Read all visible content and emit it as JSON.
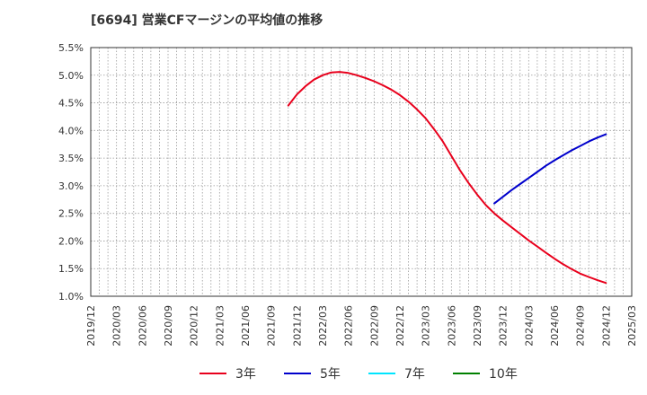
{
  "chart_data": {
    "type": "line",
    "title": "[6694]  営業CFマージンの平均値の推移",
    "xlabel": "",
    "ylabel": "",
    "ylim": [
      1.0,
      5.5
    ],
    "y_ticks": [
      1.0,
      1.5,
      2.0,
      2.5,
      3.0,
      3.5,
      4.0,
      4.5,
      5.0,
      5.5
    ],
    "y_tick_labels": [
      "1.0%",
      "1.5%",
      "2.0%",
      "2.5%",
      "3.0%",
      "3.5%",
      "4.0%",
      "4.5%",
      "5.0%",
      "5.5%"
    ],
    "x_tick_labels": [
      "2019/12",
      "2020/03",
      "2020/06",
      "2020/09",
      "2020/12",
      "2021/03",
      "2021/06",
      "2021/09",
      "2021/12",
      "2022/03",
      "2022/06",
      "2022/09",
      "2022/12",
      "2023/03",
      "2023/06",
      "2023/09",
      "2023/12",
      "2024/03",
      "2024/06",
      "2024/09",
      "2024/12",
      "2025/03"
    ],
    "grid": true,
    "legend_position": "bottom",
    "series": [
      {
        "name": "3年",
        "color": "#e8001c",
        "x": [
          "2021/11",
          "2021/12",
          "2022/01",
          "2022/02",
          "2022/03",
          "2022/04",
          "2022/05",
          "2022/06",
          "2022/07",
          "2022/08",
          "2022/09",
          "2022/10",
          "2022/11",
          "2022/12",
          "2023/01",
          "2023/02",
          "2023/03",
          "2023/04",
          "2023/05",
          "2023/06",
          "2023/07",
          "2023/08",
          "2023/09",
          "2023/10",
          "2023/11",
          "2023/12",
          "2024/01",
          "2024/02",
          "2024/03",
          "2024/04",
          "2024/05",
          "2024/06",
          "2024/07",
          "2024/08",
          "2024/09",
          "2024/10",
          "2024/11",
          "2024/12"
        ],
        "values": [
          4.45,
          4.65,
          4.8,
          4.92,
          5.0,
          5.05,
          5.06,
          5.04,
          5.0,
          4.95,
          4.89,
          4.82,
          4.74,
          4.64,
          4.52,
          4.38,
          4.22,
          4.02,
          3.8,
          3.54,
          3.28,
          3.05,
          2.84,
          2.65,
          2.5,
          2.37,
          2.25,
          2.13,
          2.01,
          1.9,
          1.79,
          1.68,
          1.58,
          1.49,
          1.41,
          1.35,
          1.29,
          1.24
        ]
      },
      {
        "name": "5年",
        "color": "#0000cc",
        "x": [
          "2023/11",
          "2023/12",
          "2024/01",
          "2024/02",
          "2024/03",
          "2024/04",
          "2024/05",
          "2024/06",
          "2024/07",
          "2024/08",
          "2024/09",
          "2024/10",
          "2024/11",
          "2024/12"
        ],
        "values": [
          2.68,
          2.8,
          2.92,
          3.03,
          3.14,
          3.25,
          3.36,
          3.46,
          3.55,
          3.64,
          3.72,
          3.8,
          3.87,
          3.93
        ]
      },
      {
        "name": "7年",
        "color": "#00e5ff",
        "x": [],
        "values": []
      },
      {
        "name": "10年",
        "color": "#008000",
        "x": [],
        "values": []
      }
    ]
  }
}
